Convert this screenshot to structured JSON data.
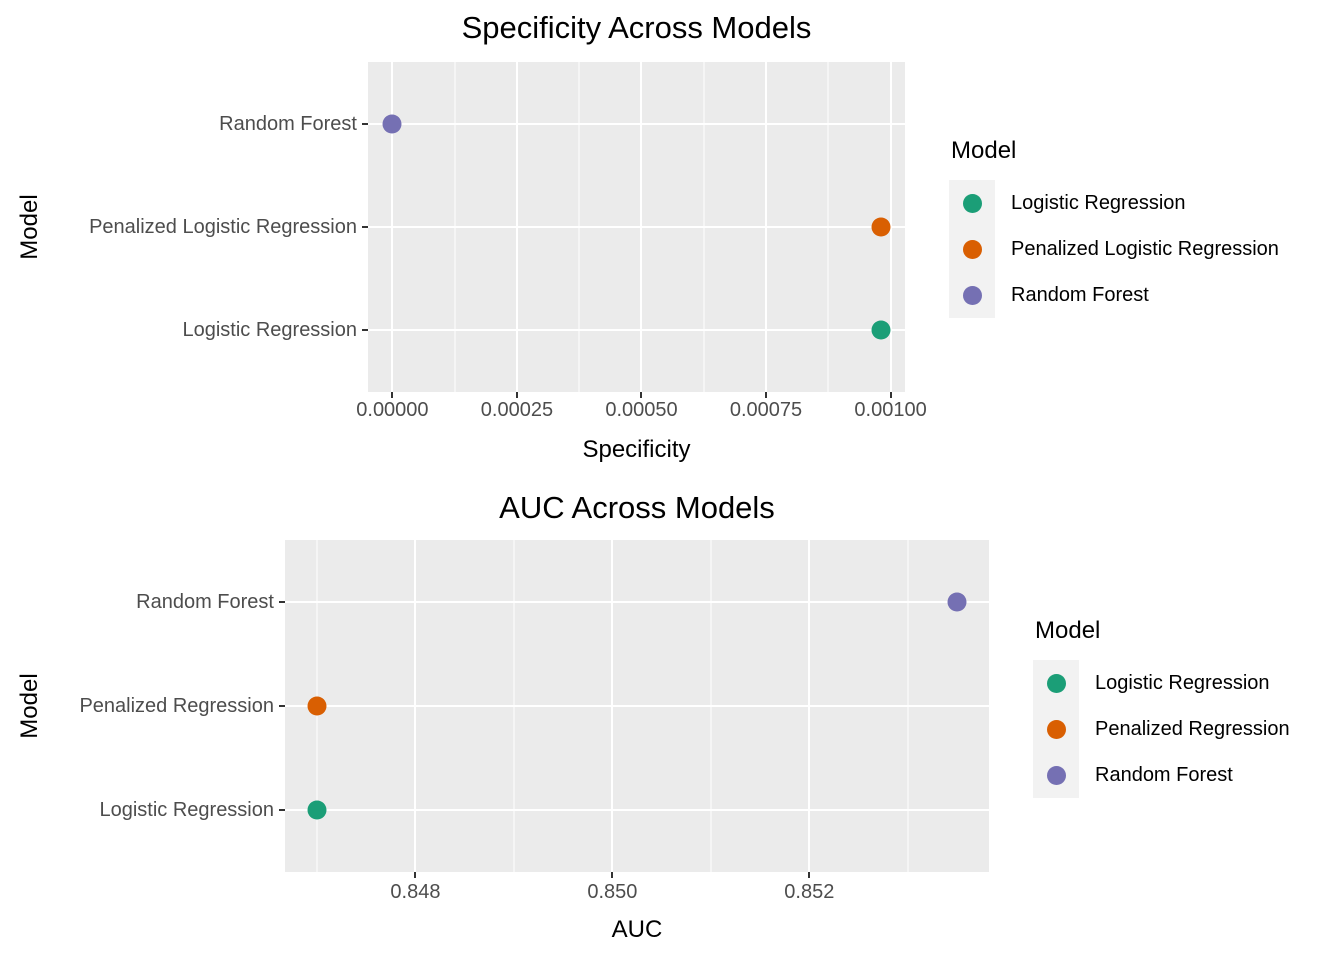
{
  "style": {
    "panel_bg": "#EBEBEB",
    "grid_color": "#FFFFFF",
    "tick_text_color": "#4D4D4D",
    "tick_mark_color": "#333333",
    "legend_key_bg": "#F2F2F2",
    "text_color": "#000000",
    "page_bg": "#FFFFFF"
  },
  "colors": {
    "Logistic Regression": "#1B9E77",
    "Penalized Logistic Regression": "#D95F02",
    "Penalized Regression": "#D95F02",
    "Random Forest": "#7570B3"
  },
  "chart_data": [
    {
      "type": "scatter",
      "title": "Specificity Across Models",
      "xlabel": "Specificity",
      "ylabel": "Model",
      "grid": true,
      "categories": [
        "Random Forest",
        "Penalized Logistic Regression",
        "Logistic Regression"
      ],
      "points": [
        {
          "model": "Random Forest",
          "x": 0.0
        },
        {
          "model": "Penalized Logistic Regression",
          "x": 0.00098
        },
        {
          "model": "Logistic Regression",
          "x": 0.00098
        }
      ],
      "x_ticks": [
        0.0,
        0.00025,
        0.0005,
        0.00075,
        0.001
      ],
      "x_tick_labels": [
        "0.00000",
        "0.00025",
        "0.00050",
        "0.00075",
        "0.00100"
      ],
      "xlim": [
        -4.9e-05,
        0.001029
      ],
      "legend": {
        "title": "Model",
        "position": "right",
        "entries": [
          "Logistic Regression",
          "Penalized Logistic Regression",
          "Random Forest"
        ]
      }
    },
    {
      "type": "scatter",
      "title": "AUC Across Models",
      "xlabel": "AUC",
      "ylabel": "Model",
      "grid": true,
      "categories": [
        "Random Forest",
        "Penalized Regression",
        "Logistic Regression"
      ],
      "points": [
        {
          "model": "Random Forest",
          "x": 0.8535
        },
        {
          "model": "Penalized Regression",
          "x": 0.847
        },
        {
          "model": "Logistic Regression",
          "x": 0.847
        }
      ],
      "x_ticks": [
        0.848,
        0.85,
        0.852
      ],
      "x_tick_labels": [
        "0.848",
        "0.850",
        "0.852"
      ],
      "xlim": [
        0.846675,
        0.853825
      ],
      "legend": {
        "title": "Model",
        "position": "right",
        "entries": [
          "Logistic Regression",
          "Penalized Regression",
          "Random Forest"
        ]
      }
    }
  ]
}
